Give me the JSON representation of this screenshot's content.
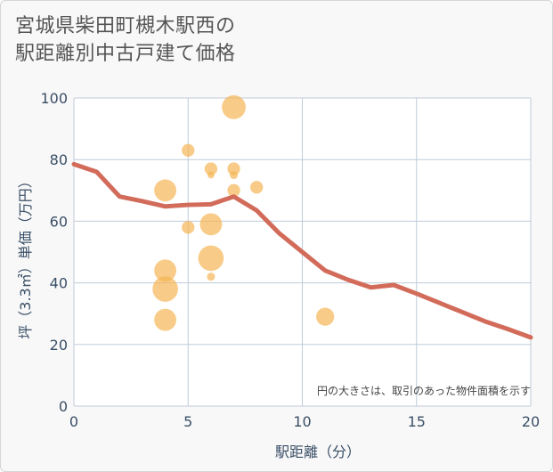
{
  "title_lines": [
    "宮城県柴田町槻木駅西の",
    "駅距離別中古戸建て価格"
  ],
  "chart_data": {
    "type": "scatter",
    "title": "宮城県柴田町槻木駅西の駅距離別中古戸建て価格",
    "xlabel": "駅距離（分）",
    "ylabel": "坪（3.3㎡）単価（万円）",
    "xlim": [
      0,
      20
    ],
    "ylim": [
      0,
      100
    ],
    "xticks": [
      0,
      5,
      10,
      15,
      20
    ],
    "yticks": [
      0,
      20,
      40,
      60,
      80,
      100
    ],
    "grid": true,
    "annotation": "円の大きさは、取引のあった物件面積を示す",
    "bubbles": [
      {
        "x": 4,
        "y": 70,
        "size": 3
      },
      {
        "x": 4,
        "y": 44,
        "size": 3
      },
      {
        "x": 4,
        "y": 38,
        "size": 4
      },
      {
        "x": 4,
        "y": 28,
        "size": 3
      },
      {
        "x": 5,
        "y": 83,
        "size": 1
      },
      {
        "x": 5,
        "y": 58,
        "size": 1
      },
      {
        "x": 6,
        "y": 77,
        "size": 1
      },
      {
        "x": 6,
        "y": 75,
        "size": 0.3
      },
      {
        "x": 6,
        "y": 59,
        "size": 3
      },
      {
        "x": 6,
        "y": 48,
        "size": 4
      },
      {
        "x": 6,
        "y": 42,
        "size": 0.4
      },
      {
        "x": 7,
        "y": 97,
        "size": 3.5
      },
      {
        "x": 7,
        "y": 77,
        "size": 1
      },
      {
        "x": 7,
        "y": 75,
        "size": 0.4
      },
      {
        "x": 7,
        "y": 70,
        "size": 1
      },
      {
        "x": 8,
        "y": 71,
        "size": 1
      },
      {
        "x": 11,
        "y": 29,
        "size": 2
      }
    ],
    "trend_line": {
      "x": [
        0,
        1,
        2,
        3,
        4,
        5,
        6,
        7,
        8,
        9,
        10,
        11,
        12,
        13,
        14,
        15,
        16,
        17,
        18,
        19,
        20
      ],
      "y": [
        78.5,
        76,
        68,
        66.5,
        64.8,
        65.3,
        65.5,
        68,
        63.5,
        56,
        50,
        44,
        41,
        38.5,
        39.3,
        36.5,
        33.5,
        30.5,
        27.5,
        25,
        22.3
      ]
    },
    "colors": {
      "bubble": "#f5b556",
      "line": "#d26b5a",
      "grid": "#bfcbd9"
    }
  }
}
